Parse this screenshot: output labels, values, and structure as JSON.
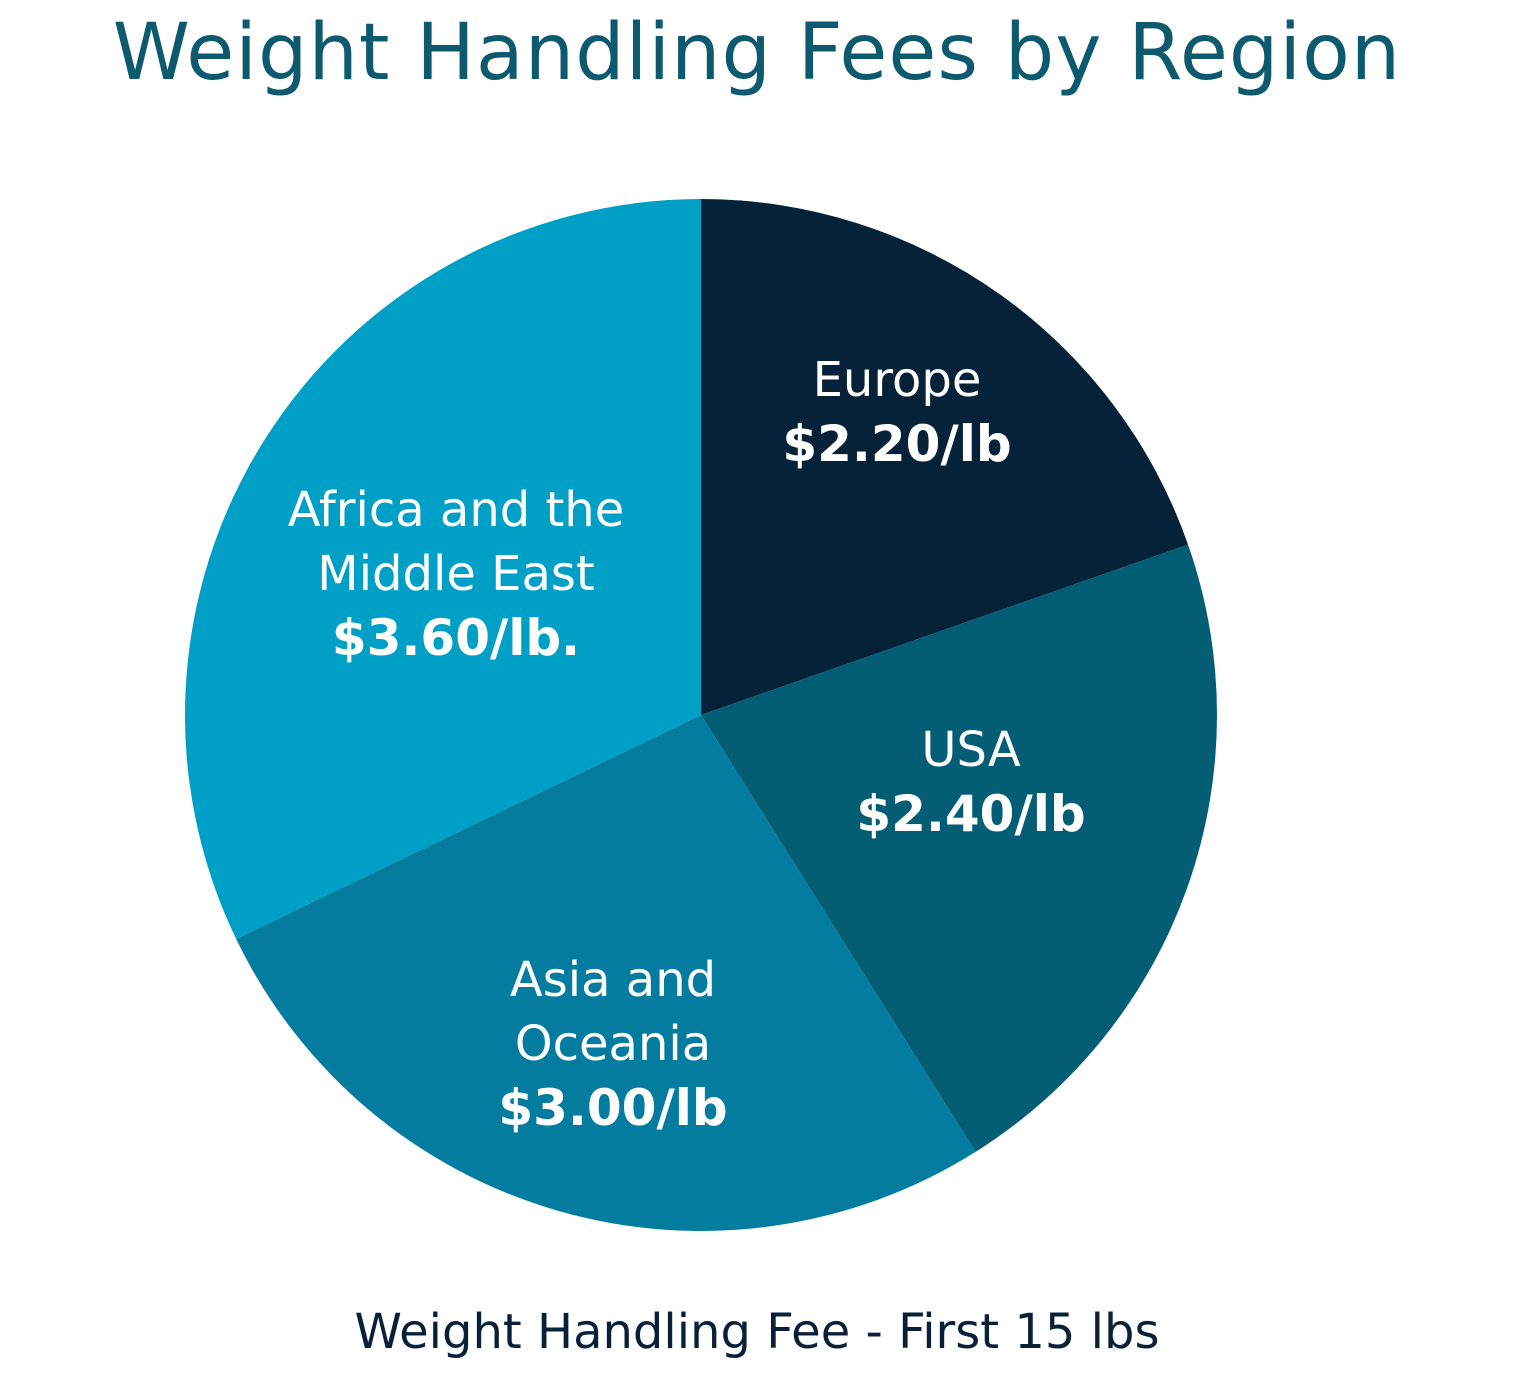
{
  "chart_data": {
    "type": "pie",
    "title": "Weight Handling Fees by Region",
    "subtitle": "Weight Handling Fee - First 15 lbs",
    "categories": [
      "Europe",
      "USA",
      "Asia and Oceania",
      "Africa and the Middle East"
    ],
    "values": [
      2.2,
      2.4,
      3.0,
      3.6
    ],
    "value_labels": [
      "$2.20/lb",
      "$2.40/lb",
      "$3.00/lb",
      "$3.60/lb."
    ],
    "colors": [
      "#062239",
      "#035d75",
      "#037ca0",
      "#00a0c6"
    ]
  }
}
